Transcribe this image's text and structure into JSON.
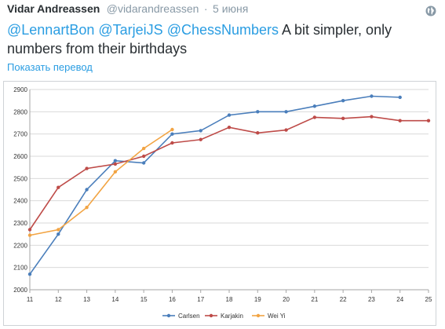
{
  "tweet": {
    "author_name": "Vidar Andreassen",
    "author_handle": "@vidarandreassen",
    "separator": "·",
    "time": "5 июня",
    "mentions": [
      "@LennartBon",
      "@TarjeiJS",
      "@ChessNumbers"
    ],
    "text": "A bit simpler, only numbers from their birthdays",
    "translate_label": "Показать перевод",
    "globe_icon": "globe-icon"
  },
  "colors": {
    "mention": "#2a9de2",
    "carlsen": "#4a7ebb",
    "karjakin": "#be4b48",
    "wei_yi": "#f2a443"
  },
  "chart_data": {
    "type": "line",
    "title": "",
    "xlabel": "",
    "ylabel": "",
    "x": [
      11,
      12,
      13,
      14,
      15,
      16,
      17,
      18,
      19,
      20,
      21,
      22,
      23,
      24,
      25
    ],
    "xlim": [
      11,
      25
    ],
    "ylim": [
      2000,
      2900
    ],
    "yticks": [
      2000,
      2100,
      2200,
      2300,
      2400,
      2500,
      2600,
      2700,
      2800,
      2900
    ],
    "grid": "horizontal",
    "legend": "bottom",
    "series": [
      {
        "name": "Carlsen",
        "color": "#4a7ebb",
        "values": [
          2070,
          2250,
          2450,
          2580,
          2570,
          2700,
          2715,
          2785,
          2800,
          2800,
          2825,
          2850,
          2870,
          2865,
          null
        ]
      },
      {
        "name": "Karjakin",
        "color": "#be4b48",
        "values": [
          2270,
          2460,
          2545,
          2565,
          2600,
          2660,
          2675,
          2730,
          2705,
          2718,
          2775,
          2770,
          2778,
          2760,
          2760
        ]
      },
      {
        "name": "Wei Yi",
        "color": "#f2a443",
        "values": [
          2245,
          2270,
          2370,
          2530,
          2635,
          2720,
          null,
          null,
          null,
          null,
          null,
          null,
          null,
          null,
          null
        ]
      }
    ]
  }
}
